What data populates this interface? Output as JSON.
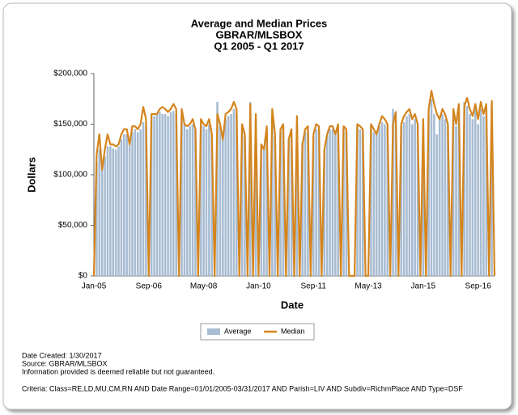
{
  "chart_data": {
    "type": "bar-line",
    "title": "Average and Median Prices",
    "subtitle": "GBRAR/MLSBOX",
    "period": "Q1 2005 - Q1 2017",
    "y_label": "Dollars",
    "x_label": "Date",
    "categories": [
      "Jan-05",
      null,
      null,
      null,
      null,
      null,
      null,
      null,
      null,
      null,
      null,
      null,
      null,
      null,
      null,
      null,
      null,
      null,
      null,
      null,
      "Sep-06",
      null,
      null,
      null,
      null,
      null,
      null,
      null,
      null,
      null,
      null,
      null,
      null,
      null,
      null,
      null,
      null,
      null,
      null,
      null,
      "May-08",
      null,
      null,
      null,
      null,
      null,
      null,
      null,
      null,
      null,
      null,
      null,
      null,
      null,
      null,
      null,
      null,
      null,
      null,
      null,
      "Jan-10",
      null,
      null,
      null,
      null,
      null,
      null,
      null,
      null,
      null,
      null,
      null,
      null,
      null,
      null,
      null,
      null,
      null,
      null,
      null,
      "Sep-11",
      null,
      null,
      null,
      null,
      null,
      null,
      null,
      null,
      null,
      null,
      null,
      null,
      null,
      null,
      null,
      null,
      null,
      null,
      null,
      "May-13",
      null,
      null,
      null,
      null,
      null,
      null,
      null,
      null,
      null,
      null,
      null,
      null,
      null,
      null,
      null,
      null,
      null,
      null,
      null,
      "Jan-15",
      null,
      null,
      null,
      null,
      null,
      null,
      null,
      null,
      null,
      null,
      null,
      null,
      null,
      null,
      null,
      null,
      null,
      null,
      null,
      "Sep-16",
      null,
      null,
      null,
      null,
      null,
      null
    ],
    "series": [
      {
        "name": "Average",
        "color": "#a8bcd2",
        "kind": "bar",
        "values": [
          0,
          112000,
          125000,
          108000,
          118000,
          128000,
          128000,
          126000,
          125000,
          128000,
          135000,
          140000,
          140000,
          135000,
          142000,
          145000,
          142000,
          145000,
          152000,
          148000,
          0,
          158000,
          158000,
          160000,
          162000,
          160000,
          160000,
          158000,
          162000,
          163000,
          160000,
          0,
          160000,
          150000,
          145000,
          148000,
          150000,
          145000,
          0,
          150000,
          148000,
          145000,
          150000,
          140000,
          0,
          172000,
          148000,
          138000,
          155000,
          158000,
          160000,
          165000,
          160000,
          0,
          148000,
          138000,
          0,
          172000,
          0,
          155000,
          0,
          128000,
          125000,
          145000,
          0,
          158000,
          138000,
          0,
          142000,
          148000,
          0,
          135000,
          142000,
          0,
          150000,
          0,
          132000,
          142000,
          145000,
          0,
          138000,
          145000,
          145000,
          0,
          125000,
          138000,
          145000,
          145000,
          140000,
          145000,
          0,
          145000,
          142000,
          0,
          0,
          0,
          148000,
          145000,
          142000,
          0,
          0,
          148000,
          142000,
          140000,
          148000,
          152000,
          150000,
          148000,
          0,
          165000,
          155000,
          0,
          148000,
          152000,
          158000,
          160000,
          150000,
          155000,
          148000,
          0,
          150000,
          0,
          158000,
          175000,
          160000,
          140000,
          158000,
          160000,
          155000,
          148000,
          0,
          160000,
          148000,
          165000,
          0,
          172000,
          168000,
          160000,
          155000,
          165000,
          150000,
          165000,
          158000,
          165000,
          0,
          168000,
          0
        ]
      },
      {
        "name": "Median",
        "color": "#d4841c",
        "kind": "line",
        "values": [
          0,
          120000,
          140000,
          105000,
          125000,
          140000,
          130000,
          130000,
          128000,
          130000,
          140000,
          145000,
          145000,
          130000,
          148000,
          148000,
          145000,
          150000,
          167000,
          155000,
          0,
          160000,
          160000,
          160000,
          165000,
          167000,
          165000,
          162000,
          165000,
          170000,
          165000,
          0,
          165000,
          150000,
          148000,
          150000,
          155000,
          145000,
          0,
          155000,
          150000,
          148000,
          155000,
          140000,
          0,
          160000,
          150000,
          135000,
          160000,
          162000,
          165000,
          172000,
          165000,
          0,
          150000,
          140000,
          0,
          170000,
          0,
          160000,
          0,
          130000,
          125000,
          148000,
          0,
          165000,
          140000,
          0,
          145000,
          150000,
          0,
          135000,
          145000,
          0,
          158000,
          0,
          130000,
          145000,
          148000,
          0,
          140000,
          150000,
          148000,
          0,
          125000,
          140000,
          148000,
          148000,
          140000,
          150000,
          0,
          148000,
          145000,
          0,
          0,
          0,
          150000,
          148000,
          145000,
          0,
          0,
          150000,
          145000,
          140000,
          150000,
          158000,
          155000,
          150000,
          0,
          150000,
          162000,
          0,
          150000,
          158000,
          162000,
          165000,
          155000,
          160000,
          150000,
          0,
          155000,
          0,
          165000,
          183000,
          170000,
          160000,
          155000,
          165000,
          160000,
          150000,
          0,
          165000,
          150000,
          170000,
          0,
          168000,
          176000,
          165000,
          158000,
          170000,
          155000,
          172000,
          160000,
          170000,
          0,
          173000,
          0
        ]
      }
    ],
    "ylim": [
      0,
      200000
    ],
    "yticks": [
      {
        "value": 0,
        "label": "$0"
      },
      {
        "value": 50000,
        "label": "$50,000"
      },
      {
        "value": 100000,
        "label": "$100,000"
      },
      {
        "value": 150000,
        "label": "$150,000"
      },
      {
        "value": 200000,
        "label": "$200,000"
      }
    ],
    "legend": "bottom",
    "footer": [
      "Date Created: 1/30/2017",
      "Source: GBRAR/MLSBOX",
      "Information provided is deemed reliable but not guaranteed."
    ],
    "criteria": "Criteria: Class=RE,LD,MU,CM,RN AND Date Range=01/01/2005-03/31/2017 AND Parish=LIV AND Subdiv=RichmPlace AND Type=DSF"
  }
}
